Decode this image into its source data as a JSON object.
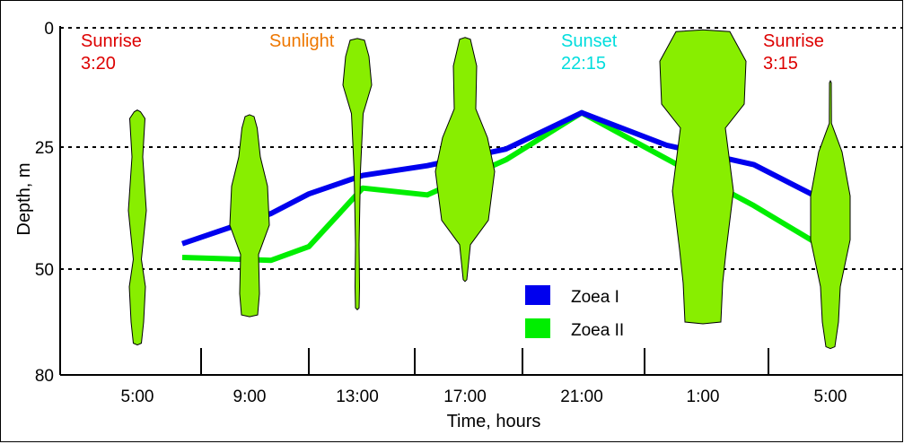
{
  "chart_data": {
    "type": "line",
    "title": "",
    "xlabel": "Time, hours",
    "ylabel": "Depth, m",
    "ylim": [
      0,
      80
    ],
    "y_ticks": [
      0,
      25,
      50,
      80
    ],
    "y_inverted": true,
    "x_categories": [
      "5:00",
      "9:00",
      "13:00",
      "17:00",
      "21:00",
      "1:00",
      "5:00"
    ],
    "gridlines_y": [
      0,
      25,
      50
    ],
    "legend_position": "bottom-right",
    "series": [
      {
        "name": "Zoea I",
        "color": "#0000ee",
        "points": [
          {
            "x": 0.4,
            "y": 44.8
          },
          {
            "x": 1.2,
            "y": 38.6
          },
          {
            "x": 1.55,
            "y": 34.6
          },
          {
            "x": 2.05,
            "y": 30.8
          },
          {
            "x": 2.65,
            "y": 28.8
          },
          {
            "x": 3.35,
            "y": 25.4
          },
          {
            "x": 4.0,
            "y": 17.8
          },
          {
            "x": 4.7,
            "y": 24.6
          },
          {
            "x": 5.4,
            "y": 28.6
          },
          {
            "x": 6.05,
            "y": 36.6
          }
        ]
      },
      {
        "name": "Zoea II",
        "color": "#00ee00",
        "points": [
          {
            "x": 0.4,
            "y": 47.6
          },
          {
            "x": 1.2,
            "y": 48.2
          },
          {
            "x": 1.55,
            "y": 45.4
          },
          {
            "x": 2.05,
            "y": 33.4
          },
          {
            "x": 2.65,
            "y": 34.8
          },
          {
            "x": 3.35,
            "y": 27.6
          },
          {
            "x": 4.0,
            "y": 17.8
          },
          {
            "x": 4.7,
            "y": 27.4
          },
          {
            "x": 5.4,
            "y": 37.0
          },
          {
            "x": 6.05,
            "y": 46.4
          }
        ]
      }
    ],
    "distribution_color": "#88ee00",
    "distributions": [
      {
        "x": 0,
        "profile": [
          [
            17.6,
            0.35
          ],
          [
            19,
            0.85
          ],
          [
            27,
            0.6
          ],
          [
            38,
            1.0
          ],
          [
            48,
            0.45
          ],
          [
            55,
            0.9
          ],
          [
            65,
            0.7
          ],
          [
            71,
            0.45
          ]
        ]
      },
      {
        "x": 1,
        "profile": [
          [
            18.6,
            0.5
          ],
          [
            21,
            0.85
          ],
          [
            27,
            1.2
          ],
          [
            33,
            2.0
          ],
          [
            41,
            2.2
          ],
          [
            47,
            1.0
          ],
          [
            57,
            1.1
          ],
          [
            63,
            0.9
          ]
        ]
      },
      {
        "x": 2,
        "profile": [
          [
            2.6,
            0.8
          ],
          [
            6,
            1.3
          ],
          [
            12,
            1.6
          ],
          [
            18,
            0.65
          ],
          [
            30,
            0.35
          ],
          [
            45,
            0.2
          ],
          [
            55,
            0.25
          ],
          [
            61,
            0.2
          ]
        ]
      },
      {
        "x": 3,
        "profile": [
          [
            2.4,
            0.6
          ],
          [
            8,
            1.3
          ],
          [
            17,
            1.2
          ],
          [
            23,
            2.5
          ],
          [
            30,
            3.3
          ],
          [
            40,
            2.6
          ],
          [
            45,
            0.6
          ],
          [
            53,
            0.2
          ]
        ]
      },
      {
        "x": 5,
        "profile": [
          [
            0.8,
            3.0
          ],
          [
            7,
            4.8
          ],
          [
            16,
            4.6
          ],
          [
            21,
            2.5
          ],
          [
            34,
            3.4
          ],
          [
            46,
            2.6
          ],
          [
            54,
            2.2
          ],
          [
            65,
            2.0
          ]
        ]
      },
      {
        "x": 6,
        "profile": [
          [
            11.5,
            0.1
          ],
          [
            20,
            0.12
          ],
          [
            26,
            1.3
          ],
          [
            35,
            2.2
          ],
          [
            44,
            2.2
          ],
          [
            55,
            1.1
          ],
          [
            65,
            0.9
          ],
          [
            72,
            0.5
          ]
        ]
      }
    ],
    "annotations": [
      {
        "color": "#dd0000",
        "lines": [
          "Sunrise",
          "3:20"
        ]
      },
      {
        "color": "#ee7700",
        "lines": [
          "Sunlight"
        ]
      },
      {
        "color": "#00dddd",
        "lines": [
          "Sunset",
          "22:15"
        ]
      },
      {
        "color": "#dd0000",
        "lines": [
          "Sunrise",
          "3:15"
        ]
      }
    ]
  }
}
